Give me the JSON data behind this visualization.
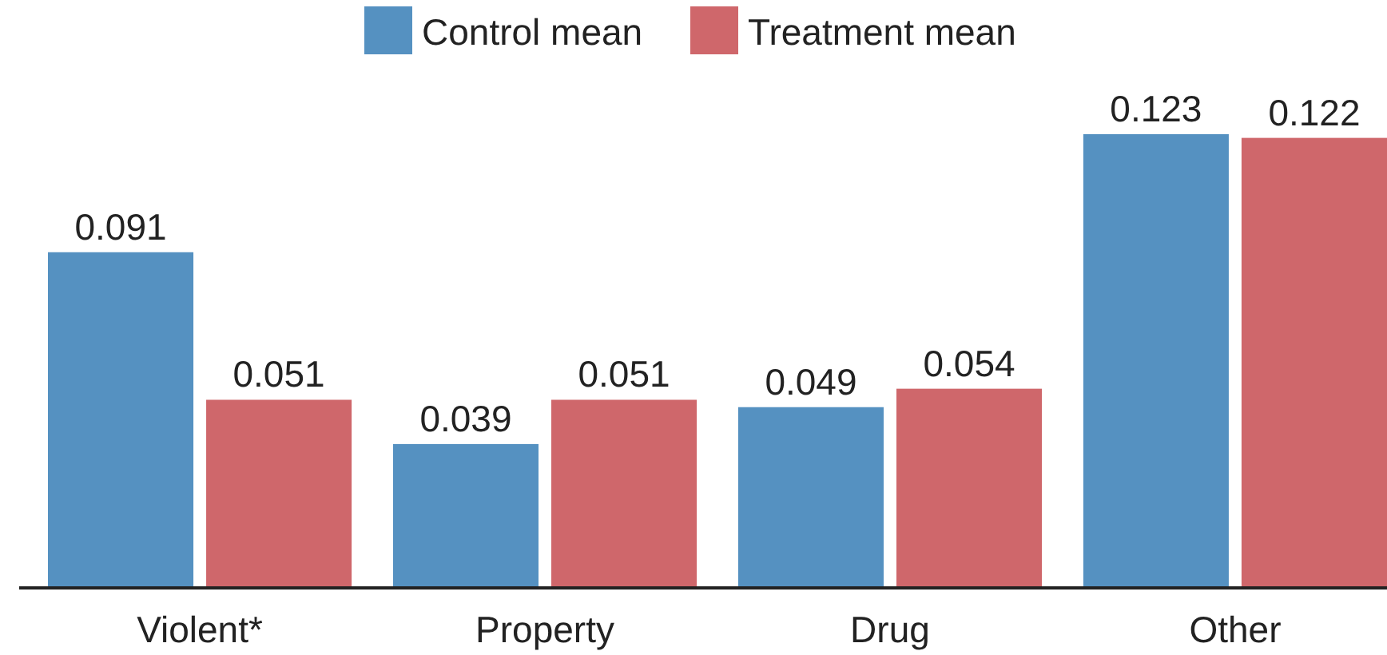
{
  "chart_data": {
    "type": "bar",
    "categories": [
      "Violent*",
      "Property",
      "Drug",
      "Other"
    ],
    "series": [
      {
        "name": "Control mean",
        "color": "#5591c1",
        "values": [
          0.091,
          0.039,
          0.049,
          0.123
        ]
      },
      {
        "name": "Treatment mean",
        "color": "#cf676b",
        "values": [
          0.051,
          0.051,
          0.054,
          0.122
        ]
      }
    ],
    "data_labels": true,
    "legend": "top"
  }
}
